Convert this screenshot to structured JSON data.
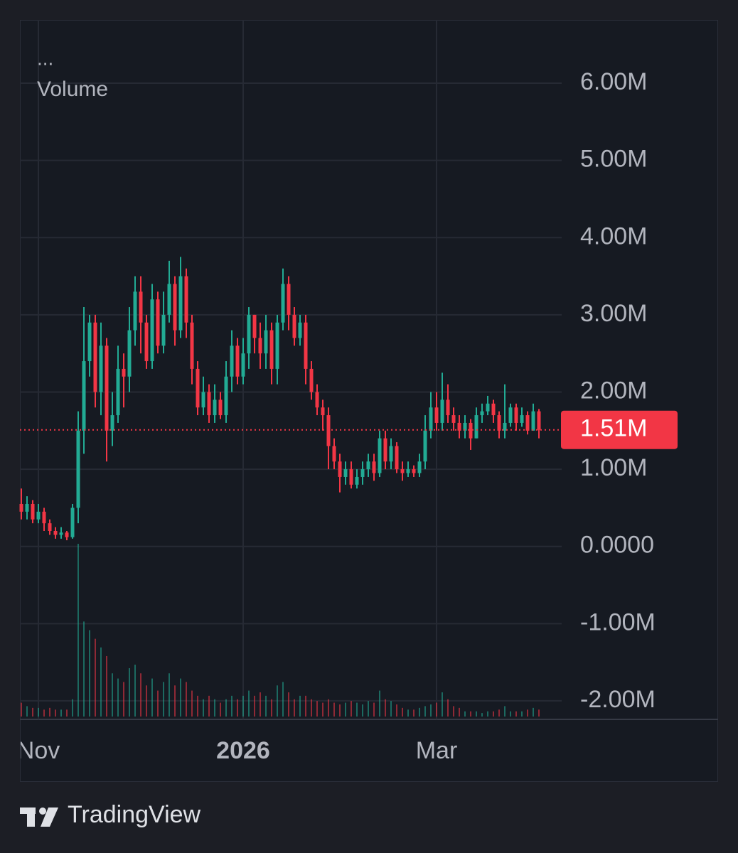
{
  "chart_data": {
    "type": "candlestick",
    "menu": "...",
    "indicator_label": "Volume",
    "brand": "TradingView",
    "categories": [
      null,
      null,
      null,
      "Nov",
      null,
      null,
      null,
      null,
      null,
      null,
      null,
      null,
      null,
      null,
      null,
      null,
      null,
      null,
      null,
      null,
      null,
      null,
      null,
      null,
      null,
      null,
      null,
      null,
      null,
      null,
      null,
      null,
      null,
      null,
      null,
      null,
      null,
      null,
      null,
      "2026",
      null,
      null,
      null,
      null,
      null,
      null,
      null,
      null,
      null,
      null,
      null,
      null,
      null,
      null,
      null,
      null,
      null,
      null,
      null,
      null,
      null,
      null,
      null,
      null,
      null,
      null,
      null,
      null,
      null,
      null,
      null,
      null,
      null,
      "Mar",
      null,
      null,
      null,
      null,
      null,
      null,
      null,
      null,
      null,
      null,
      null,
      null,
      null,
      null,
      null,
      null,
      null,
      null
    ],
    "open": [
      0.55,
      0.45,
      0.55,
      0.35,
      0.45,
      0.3,
      0.2,
      0.15,
      0.18,
      0.12,
      0.5,
      1.5,
      2.4,
      2.9,
      2.0,
      2.6,
      1.5,
      1.7,
      2.3,
      2.2,
      2.8,
      3.3,
      2.9,
      2.4,
      3.2,
      2.6,
      3.0,
      3.4,
      2.8,
      3.5,
      2.9,
      2.3,
      1.8,
      2.0,
      1.7,
      1.9,
      1.7,
      2.2,
      2.6,
      2.2,
      2.5,
      3.0,
      2.7,
      2.5,
      2.8,
      2.3,
      2.9,
      3.4,
      3.0,
      2.7,
      2.9,
      2.3,
      2.0,
      1.8,
      1.7,
      1.3,
      1.1,
      0.9,
      1.0,
      0.8,
      0.9,
      1.0,
      1.1,
      0.95,
      1.4,
      1.1,
      1.3,
      1.0,
      0.95,
      1.0,
      0.95,
      1.1,
      1.5,
      1.8,
      1.6,
      1.9,
      1.7,
      1.6,
      1.5,
      1.6,
      1.4,
      1.7,
      1.75,
      1.85,
      1.7,
      1.5,
      1.6,
      1.8,
      1.6,
      1.7,
      1.5,
      1.75
    ],
    "close": [
      0.45,
      0.55,
      0.35,
      0.45,
      0.3,
      0.2,
      0.15,
      0.18,
      0.12,
      0.5,
      1.5,
      2.4,
      2.9,
      2.0,
      2.6,
      1.5,
      1.7,
      2.3,
      2.2,
      2.8,
      3.3,
      2.9,
      2.4,
      3.2,
      2.6,
      3.0,
      3.4,
      2.8,
      3.5,
      2.9,
      2.3,
      1.8,
      2.0,
      1.7,
      1.9,
      1.7,
      2.2,
      2.6,
      2.2,
      2.5,
      3.0,
      2.7,
      2.5,
      2.8,
      2.3,
      2.9,
      3.4,
      3.0,
      2.7,
      2.9,
      2.3,
      2.0,
      1.8,
      1.7,
      1.3,
      1.1,
      0.9,
      1.0,
      0.8,
      0.9,
      1.0,
      1.1,
      0.95,
      1.4,
      1.1,
      1.3,
      1.0,
      0.95,
      1.0,
      0.95,
      1.1,
      1.5,
      1.8,
      1.6,
      1.9,
      1.7,
      1.6,
      1.5,
      1.6,
      1.4,
      1.7,
      1.75,
      1.85,
      1.7,
      1.5,
      1.6,
      1.8,
      1.6,
      1.7,
      1.5,
      1.75,
      1.51
    ],
    "high": [
      0.75,
      0.65,
      0.6,
      0.55,
      0.5,
      0.35,
      0.25,
      0.25,
      0.2,
      0.55,
      1.75,
      3.1,
      3.0,
      3.0,
      2.9,
      2.7,
      2.0,
      2.6,
      2.5,
      3.1,
      3.5,
      3.5,
      3.0,
      3.4,
      3.3,
      3.3,
      3.7,
      3.5,
      3.75,
      3.6,
      3.0,
      2.4,
      2.2,
      2.1,
      2.1,
      2.0,
      2.4,
      2.8,
      2.7,
      2.7,
      3.1,
      3.0,
      2.9,
      3.0,
      2.9,
      3.0,
      3.6,
      3.5,
      3.1,
      3.0,
      3.0,
      2.4,
      2.1,
      1.9,
      1.8,
      1.4,
      1.2,
      1.1,
      1.1,
      1.0,
      1.1,
      1.2,
      1.2,
      1.5,
      1.5,
      1.4,
      1.35,
      1.1,
      1.1,
      1.05,
      1.2,
      1.7,
      2.0,
      2.0,
      2.25,
      2.1,
      1.8,
      1.7,
      1.7,
      1.65,
      1.8,
      1.85,
      1.95,
      1.9,
      1.75,
      2.1,
      1.85,
      1.85,
      1.8,
      1.75,
      1.85,
      1.78
    ],
    "low": [
      0.35,
      0.35,
      0.3,
      0.3,
      0.2,
      0.15,
      0.1,
      0.1,
      0.08,
      0.1,
      0.3,
      1.2,
      2.2,
      1.8,
      1.7,
      1.1,
      1.3,
      1.6,
      1.8,
      2.0,
      2.6,
      2.5,
      2.3,
      2.3,
      2.5,
      2.5,
      2.9,
      2.6,
      2.7,
      2.7,
      2.1,
      1.7,
      1.7,
      1.6,
      1.6,
      1.65,
      1.6,
      2.0,
      2.1,
      2.1,
      2.3,
      2.5,
      2.3,
      2.3,
      2.1,
      2.1,
      2.8,
      2.8,
      2.6,
      2.6,
      2.1,
      1.9,
      1.7,
      1.5,
      1.0,
      1.0,
      0.7,
      0.8,
      0.75,
      0.75,
      0.8,
      0.9,
      0.85,
      0.9,
      1.0,
      1.0,
      0.95,
      0.85,
      0.9,
      0.9,
      0.9,
      1.0,
      1.4,
      1.5,
      1.5,
      1.6,
      1.5,
      1.4,
      1.4,
      1.25,
      1.4,
      1.6,
      1.7,
      1.6,
      1.4,
      1.4,
      1.55,
      1.5,
      1.55,
      1.45,
      1.5,
      1.4
    ],
    "volume": [
      8,
      6,
      5,
      5,
      4,
      5,
      4,
      4,
      4,
      10,
      100,
      55,
      50,
      45,
      40,
      35,
      25,
      22,
      20,
      28,
      30,
      25,
      18,
      22,
      15,
      20,
      25,
      18,
      22,
      20,
      15,
      12,
      10,
      12,
      10,
      8,
      10,
      12,
      10,
      12,
      15,
      12,
      14,
      12,
      10,
      18,
      20,
      14,
      10,
      12,
      12,
      10,
      9,
      8,
      10,
      8,
      7,
      8,
      9,
      8,
      7,
      9,
      8,
      15,
      10,
      9,
      7,
      5,
      4,
      4,
      5,
      6,
      7,
      8,
      14,
      10,
      6,
      5,
      3,
      3,
      3,
      2,
      3,
      3,
      4,
      6,
      3,
      3,
      3,
      4,
      5,
      4
    ],
    "up_color": "#22ab94",
    "down_color": "#f23645",
    "ylim": [
      -2.24,
      6.82
    ],
    "yticks": [
      {
        "value": 6,
        "label": "6.00M"
      },
      {
        "value": 5,
        "label": "5.00M"
      },
      {
        "value": 4,
        "label": "4.00M"
      },
      {
        "value": 3,
        "label": "3.00M"
      },
      {
        "value": 2,
        "label": "2.00M"
      },
      {
        "value": 1,
        "label": "1.00M"
      },
      {
        "value": 0,
        "label": "0.0000"
      },
      {
        "value": -1,
        "label": "-1.00M"
      },
      {
        "value": -2,
        "label": "-2.00M"
      }
    ],
    "last_price": {
      "value": 1.51,
      "label": "1.51M"
    },
    "grid": true
  }
}
